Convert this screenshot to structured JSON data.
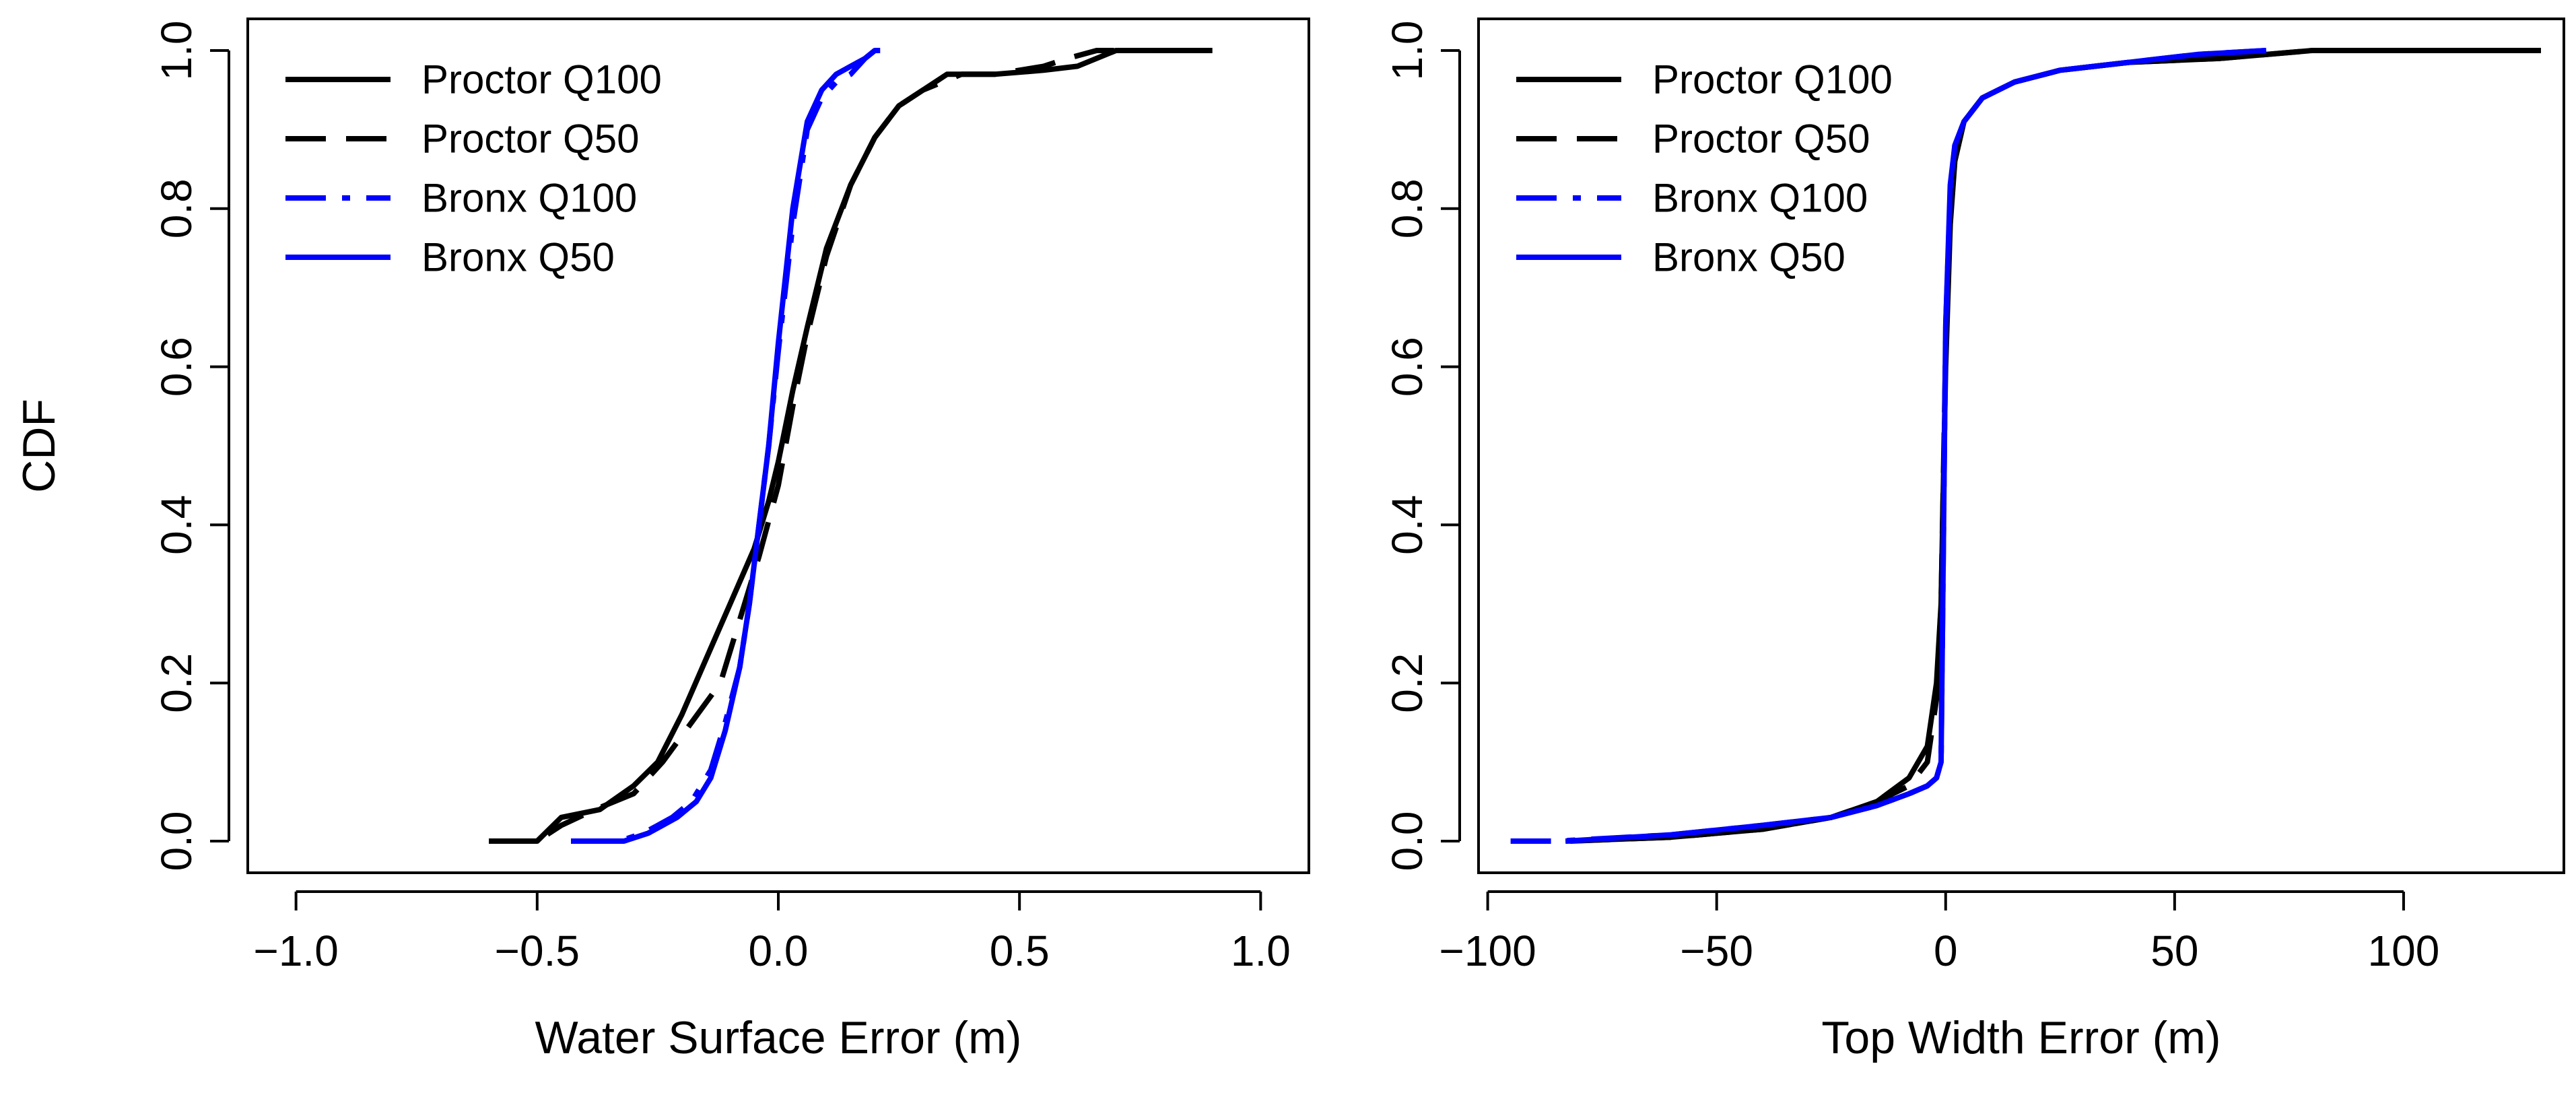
{
  "chart_data": [
    {
      "type": "line",
      "panel": "left",
      "title": "",
      "xlabel": "Water Surface Error (m)",
      "ylabel": "CDF",
      "xlim": [
        -1.1,
        1.1
      ],
      "ylim": [
        -0.04,
        1.04
      ],
      "xticks": [
        -1.0,
        -0.5,
        0.0,
        0.5,
        1.0
      ],
      "xtick_labels": [
        "−1.0",
        "−0.5",
        "0.0",
        "0.5",
        "1.0"
      ],
      "yticks": [
        0.0,
        0.2,
        0.4,
        0.6,
        0.8,
        1.0
      ],
      "ytick_labels": [
        "0.0",
        "0.2",
        "0.4",
        "0.6",
        "0.8",
        "1.0"
      ],
      "legend_position": "top-left",
      "grid": false,
      "series": [
        {
          "name": "Proctor Q100",
          "color": "#000000",
          "dash": "solid",
          "x": [
            -0.6,
            -0.5,
            -0.45,
            -0.37,
            -0.3,
            -0.25,
            -0.2,
            -0.15,
            -0.1,
            -0.05,
            -0.02,
            0.0,
            0.03,
            0.06,
            0.1,
            0.15,
            0.2,
            0.25,
            0.3,
            0.35,
            0.45,
            0.55,
            0.62,
            0.7,
            0.8,
            0.9
          ],
          "y": [
            0.0,
            0.0,
            0.03,
            0.04,
            0.07,
            0.1,
            0.16,
            0.23,
            0.3,
            0.37,
            0.43,
            0.48,
            0.57,
            0.65,
            0.75,
            0.83,
            0.89,
            0.93,
            0.95,
            0.97,
            0.97,
            0.975,
            0.98,
            1.0,
            1.0,
            1.0
          ]
        },
        {
          "name": "Proctor Q50",
          "color": "#000000",
          "dash": "dashed",
          "x": [
            -0.6,
            -0.5,
            -0.45,
            -0.38,
            -0.3,
            -0.24,
            -0.18,
            -0.12,
            -0.08,
            -0.04,
            0.0,
            0.03,
            0.06,
            0.1,
            0.15,
            0.2,
            0.25,
            0.3,
            0.38,
            0.45,
            0.55,
            0.6,
            0.66,
            0.7
          ],
          "y": [
            0.0,
            0.0,
            0.02,
            0.04,
            0.06,
            0.1,
            0.15,
            0.2,
            0.28,
            0.36,
            0.45,
            0.55,
            0.64,
            0.74,
            0.83,
            0.89,
            0.93,
            0.95,
            0.97,
            0.97,
            0.98,
            0.99,
            1.0,
            1.0
          ]
        },
        {
          "name": "Bronx Q100",
          "color": "#0000ff",
          "dash": "dashdot",
          "x": [
            -0.43,
            -0.33,
            -0.28,
            -0.25,
            -0.22,
            -0.18,
            -0.14,
            -0.11,
            -0.08,
            -0.06,
            -0.04,
            -0.02,
            0.0,
            0.03,
            0.06,
            0.09,
            0.12,
            0.15,
            0.18,
            0.2,
            0.24
          ],
          "y": [
            0.0,
            0.0,
            0.01,
            0.02,
            0.03,
            0.05,
            0.09,
            0.15,
            0.22,
            0.3,
            0.4,
            0.5,
            0.62,
            0.78,
            0.9,
            0.94,
            0.96,
            0.97,
            0.99,
            1.0,
            1.0
          ]
        },
        {
          "name": "Bronx Q50",
          "color": "#0000ff",
          "dash": "solid",
          "x": [
            -0.42,
            -0.32,
            -0.27,
            -0.24,
            -0.21,
            -0.17,
            -0.14,
            -0.11,
            -0.08,
            -0.06,
            -0.04,
            -0.02,
            0.0,
            0.03,
            0.06,
            0.09,
            0.12,
            0.15,
            0.18,
            0.2
          ],
          "y": [
            0.0,
            0.0,
            0.01,
            0.02,
            0.03,
            0.05,
            0.08,
            0.14,
            0.22,
            0.3,
            0.4,
            0.5,
            0.63,
            0.8,
            0.91,
            0.95,
            0.97,
            0.98,
            0.99,
            1.0
          ]
        }
      ]
    },
    {
      "type": "line",
      "panel": "right",
      "title": "",
      "xlabel": "Top Width Error (m)",
      "ylabel": "",
      "xlim": [
        -102,
        135
      ],
      "ylim": [
        -0.04,
        1.04
      ],
      "xticks": [
        -100,
        -50,
        0,
        50,
        100
      ],
      "xtick_labels": [
        "−100",
        "−50",
        "0",
        "50",
        "100"
      ],
      "yticks": [
        0.0,
        0.2,
        0.4,
        0.6,
        0.8,
        1.0
      ],
      "ytick_labels": [
        "0.0",
        "0.2",
        "0.4",
        "0.6",
        "0.8",
        "1.0"
      ],
      "legend_position": "top-left",
      "grid": false,
      "series": [
        {
          "name": "Proctor Q100",
          "color": "#000000",
          "dash": "solid",
          "x": [
            -83,
            -60,
            -40,
            -25,
            -15,
            -8,
            -4,
            -2,
            -1,
            0,
            1,
            2,
            4,
            8,
            15,
            25,
            40,
            60,
            80,
            100,
            130
          ],
          "y": [
            0.0,
            0.005,
            0.015,
            0.03,
            0.05,
            0.08,
            0.12,
            0.2,
            0.3,
            0.6,
            0.78,
            0.86,
            0.91,
            0.94,
            0.96,
            0.975,
            0.985,
            0.99,
            1.0,
            1.0,
            1.0
          ]
        },
        {
          "name": "Proctor Q50",
          "color": "#000000",
          "dash": "dashed",
          "x": [
            -82,
            -60,
            -40,
            -25,
            -15,
            -8,
            -4,
            -2,
            -1,
            0,
            1,
            2,
            4,
            8,
            15,
            25,
            40,
            60,
            80,
            100,
            130
          ],
          "y": [
            0.0,
            0.005,
            0.015,
            0.03,
            0.05,
            0.07,
            0.1,
            0.18,
            0.3,
            0.62,
            0.8,
            0.87,
            0.91,
            0.94,
            0.96,
            0.975,
            0.985,
            0.99,
            1.0,
            1.0,
            1.0
          ]
        },
        {
          "name": "Bronx Q100",
          "color": "#0000ff",
          "dash": "dashdot",
          "x": [
            -95,
            -85,
            -60,
            -40,
            -25,
            -15,
            -8,
            -4,
            -2,
            -1,
            0,
            1,
            2,
            4,
            8,
            15,
            25,
            40,
            55,
            70
          ],
          "y": [
            0.0,
            0.0,
            0.008,
            0.02,
            0.03,
            0.045,
            0.06,
            0.07,
            0.08,
            0.1,
            0.65,
            0.82,
            0.88,
            0.91,
            0.94,
            0.96,
            0.975,
            0.985,
            0.995,
            1.0
          ]
        },
        {
          "name": "Bronx Q50",
          "color": "#0000ff",
          "dash": "solid",
          "x": [
            -83,
            -60,
            -40,
            -25,
            -15,
            -8,
            -4,
            -2,
            -1,
            0,
            1,
            2,
            4,
            8,
            15,
            25,
            40,
            55,
            70
          ],
          "y": [
            0.0,
            0.008,
            0.02,
            0.03,
            0.045,
            0.06,
            0.07,
            0.08,
            0.1,
            0.65,
            0.83,
            0.88,
            0.91,
            0.94,
            0.96,
            0.975,
            0.985,
            0.995,
            1.0
          ]
        }
      ]
    }
  ]
}
